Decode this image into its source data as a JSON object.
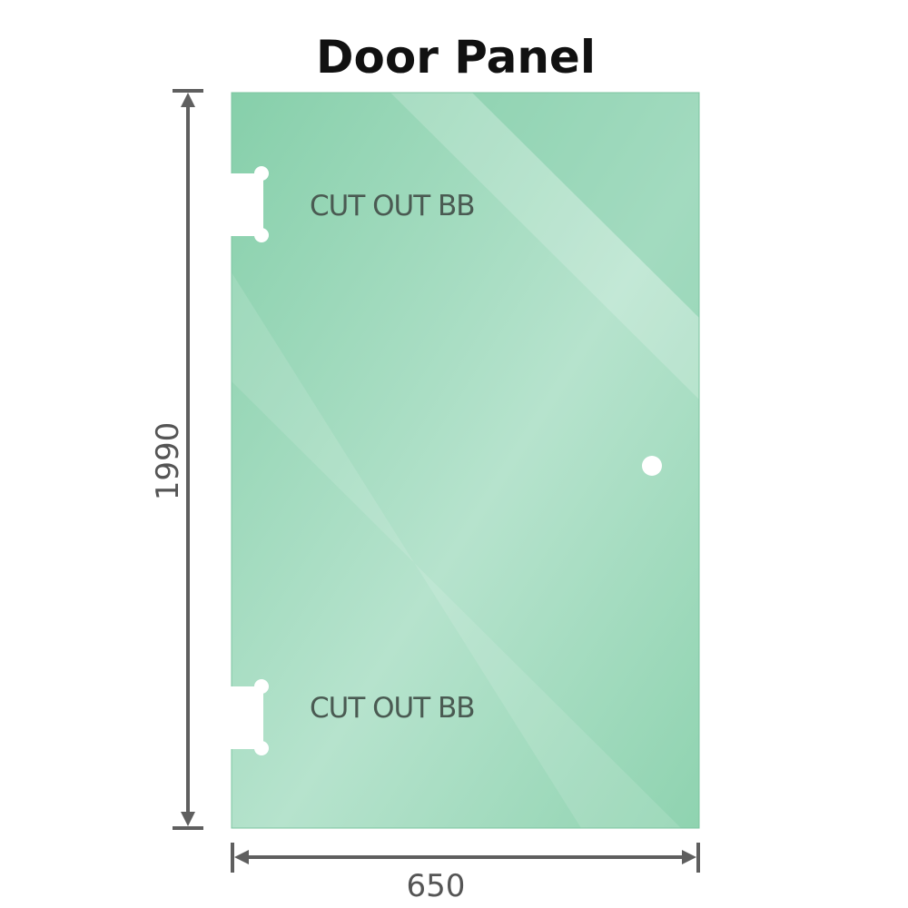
{
  "title": "Door Panel",
  "cutouts": [
    {
      "label": "CUT OUT BB"
    },
    {
      "label": "CUT OUT BB"
    }
  ],
  "dimensions": {
    "height": "1990",
    "width": "650"
  },
  "colors": {
    "glass": "#8fd2b0",
    "glass_light": "#b8e4cf",
    "dimension_line": "#5f5f5f"
  }
}
